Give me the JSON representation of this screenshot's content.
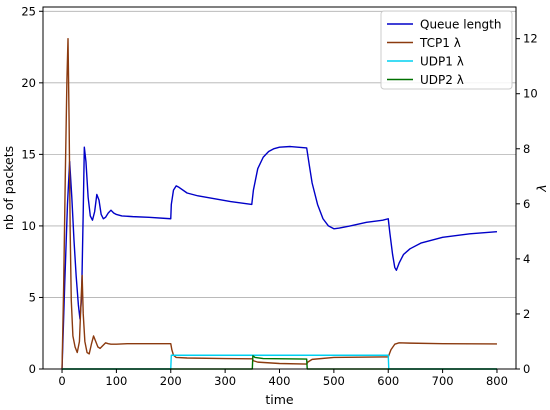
{
  "chart_data": {
    "type": "line",
    "title": "",
    "xlabel": "time",
    "ylabel_left": "nb of packets",
    "ylabel_right": "λ",
    "xlim": [
      -35,
      835
    ],
    "ylim_left": [
      0,
      25.3
    ],
    "ylim_right": [
      0,
      13.15
    ],
    "x_ticks": [
      0,
      100,
      200,
      300,
      400,
      500,
      600,
      700,
      800
    ],
    "y_ticks_left": [
      0,
      5,
      10,
      15,
      20,
      25
    ],
    "y_ticks_right": [
      0,
      2,
      4,
      6,
      8,
      10,
      12
    ],
    "grid": "horizontal-left",
    "legend_position": "top-right",
    "series": [
      {
        "name": "Queue length",
        "axis": "left",
        "color": "#0000c8",
        "points": [
          [
            0,
            0
          ],
          [
            5,
            6
          ],
          [
            10,
            11.5
          ],
          [
            14,
            14.5
          ],
          [
            18,
            12
          ],
          [
            22,
            9
          ],
          [
            26,
            6.5
          ],
          [
            30,
            4.5
          ],
          [
            33,
            3.5
          ],
          [
            36,
            5
          ],
          [
            39,
            11
          ],
          [
            41,
            15.5
          ],
          [
            44,
            14.5
          ],
          [
            48,
            12
          ],
          [
            52,
            10.7
          ],
          [
            56,
            10.4
          ],
          [
            60,
            11
          ],
          [
            64,
            12.2
          ],
          [
            68,
            11.8
          ],
          [
            72,
            10.8
          ],
          [
            76,
            10.5
          ],
          [
            80,
            10.6
          ],
          [
            85,
            10.9
          ],
          [
            90,
            11.1
          ],
          [
            95,
            10.9
          ],
          [
            100,
            10.8
          ],
          [
            110,
            10.7
          ],
          [
            130,
            10.65
          ],
          [
            160,
            10.6
          ],
          [
            200,
            10.5
          ],
          [
            201,
            11.5
          ],
          [
            205,
            12.5
          ],
          [
            210,
            12.8
          ],
          [
            215,
            12.7
          ],
          [
            230,
            12.3
          ],
          [
            250,
            12.1
          ],
          [
            280,
            11.9
          ],
          [
            310,
            11.7
          ],
          [
            349,
            11.5
          ],
          [
            352,
            12.5
          ],
          [
            360,
            14
          ],
          [
            370,
            14.8
          ],
          [
            380,
            15.2
          ],
          [
            390,
            15.4
          ],
          [
            400,
            15.5
          ],
          [
            420,
            15.55
          ],
          [
            450,
            15.45
          ],
          [
            455,
            14.2
          ],
          [
            460,
            13
          ],
          [
            470,
            11.5
          ],
          [
            480,
            10.5
          ],
          [
            490,
            10
          ],
          [
            500,
            9.8
          ],
          [
            510,
            9.85
          ],
          [
            530,
            10
          ],
          [
            560,
            10.25
          ],
          [
            590,
            10.4
          ],
          [
            600,
            10.5
          ],
          [
            603,
            9.5
          ],
          [
            608,
            8
          ],
          [
            612,
            7.1
          ],
          [
            615,
            6.9
          ],
          [
            620,
            7.4
          ],
          [
            628,
            8
          ],
          [
            640,
            8.4
          ],
          [
            660,
            8.8
          ],
          [
            700,
            9.2
          ],
          [
            750,
            9.45
          ],
          [
            800,
            9.6
          ]
        ]
      },
      {
        "name": "TCP1 λ",
        "axis": "right",
        "color": "#8b3a0f",
        "points": [
          [
            0,
            0
          ],
          [
            3,
            3
          ],
          [
            6,
            7
          ],
          [
            9,
            10.5
          ],
          [
            11,
            12
          ],
          [
            13,
            9
          ],
          [
            15,
            5
          ],
          [
            17,
            2.5
          ],
          [
            20,
            1.2
          ],
          [
            24,
            0.8
          ],
          [
            28,
            0.6
          ],
          [
            32,
            1
          ],
          [
            35,
            2.5
          ],
          [
            37,
            3.4
          ],
          [
            39,
            2
          ],
          [
            42,
            1
          ],
          [
            46,
            0.6
          ],
          [
            50,
            0.55
          ],
          [
            54,
            0.9
          ],
          [
            58,
            1.2
          ],
          [
            62,
            1
          ],
          [
            66,
            0.8
          ],
          [
            70,
            0.75
          ],
          [
            75,
            0.85
          ],
          [
            80,
            0.95
          ],
          [
            85,
            0.92
          ],
          [
            90,
            0.9
          ],
          [
            100,
            0.9
          ],
          [
            120,
            0.92
          ],
          [
            200,
            0.92
          ],
          [
            202,
            0.7
          ],
          [
            205,
            0.5
          ],
          [
            210,
            0.42
          ],
          [
            230,
            0.4
          ],
          [
            300,
            0.38
          ],
          [
            350,
            0.37
          ],
          [
            352,
            0.3
          ],
          [
            360,
            0.25
          ],
          [
            400,
            0.2
          ],
          [
            450,
            0.18
          ],
          [
            452,
            0.25
          ],
          [
            460,
            0.35
          ],
          [
            500,
            0.42
          ],
          [
            600,
            0.44
          ],
          [
            605,
            0.7
          ],
          [
            612,
            0.9
          ],
          [
            620,
            0.95
          ],
          [
            640,
            0.94
          ],
          [
            700,
            0.92
          ],
          [
            800,
            0.91
          ]
        ]
      },
      {
        "name": "UDP1 λ",
        "axis": "right",
        "color": "#00d0f0",
        "points": [
          [
            0,
            0
          ],
          [
            199,
            0
          ],
          [
            200,
            0
          ],
          [
            201,
            0.5
          ],
          [
            600,
            0.5
          ],
          [
            601,
            0
          ],
          [
            800,
            0
          ]
        ]
      },
      {
        "name": "UDP2 λ",
        "axis": "right",
        "color": "#007000",
        "points": [
          [
            0,
            0
          ],
          [
            349,
            0
          ],
          [
            350,
            0
          ],
          [
            351,
            0.48
          ],
          [
            355,
            0.42
          ],
          [
            370,
            0.38
          ],
          [
            450,
            0.36
          ],
          [
            451,
            0
          ],
          [
            800,
            0
          ]
        ]
      }
    ]
  }
}
